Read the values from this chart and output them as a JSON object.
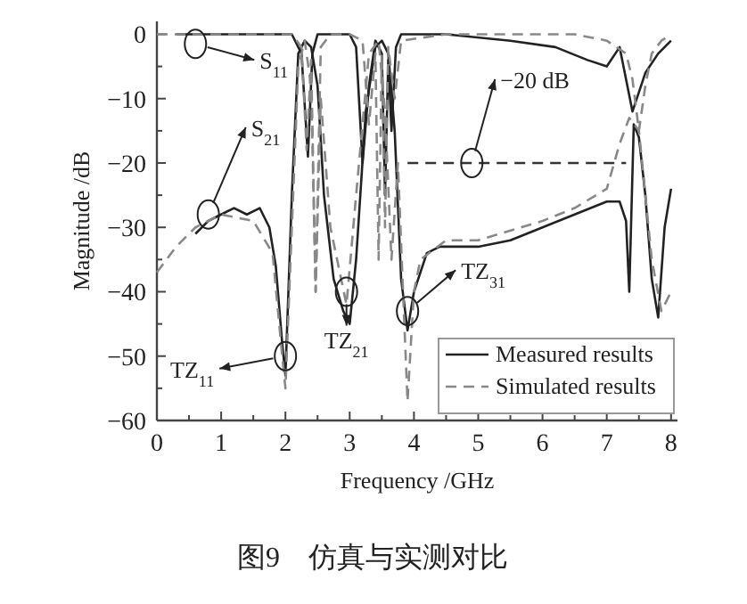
{
  "chart_data": {
    "type": "line",
    "xlabel": "Frequency /GHz",
    "ylabel": "Magnitude /dB",
    "xlim": [
      0,
      8.1
    ],
    "ylim": [
      -60,
      2
    ],
    "xticks": [
      0,
      {
        "value": 0.5,
        "label": null
      },
      1,
      {
        "value": 1.5,
        "label": null
      },
      2,
      {
        "value": 2.5,
        "label": null
      },
      3,
      {
        "value": 3.5,
        "label": null
      },
      4,
      {
        "value": 4.5,
        "label": null
      },
      5,
      {
        "value": 5.5,
        "label": null
      },
      6,
      {
        "value": 6.5,
        "label": null
      },
      7,
      {
        "value": 7.5,
        "label": null
      },
      8
    ],
    "yticks": [
      {
        "value": -60,
        "label": "−60"
      },
      {
        "value": -55,
        "label": null
      },
      {
        "value": -50,
        "label": "−50"
      },
      {
        "value": -45,
        "label": null
      },
      {
        "value": -40,
        "label": "−40"
      },
      {
        "value": -35,
        "label": null
      },
      {
        "value": -30,
        "label": "−30"
      },
      {
        "value": -25,
        "label": null
      },
      {
        "value": -20,
        "label": "−20"
      },
      {
        "value": -15,
        "label": null
      },
      {
        "value": -10,
        "label": "−10"
      },
      {
        "value": -5,
        "label": null
      },
      0
    ],
    "grid": false,
    "legend": "bottom right",
    "marker": "none",
    "series": [
      {
        "name": "Measured results",
        "color": "#222222",
        "line_style": "solid",
        "x": [
          0.3,
          1.0,
          2.1,
          2.25,
          2.35,
          2.42,
          2.5,
          2.6,
          2.8,
          3.0,
          3.1,
          3.2,
          3.3,
          3.4,
          3.5,
          3.55,
          3.6,
          3.65,
          3.72,
          3.8,
          4.5,
          5.5,
          6.2,
          6.7,
          7.0,
          7.2,
          7.3,
          7.4,
          7.6,
          7.8,
          8.0
        ],
        "values": [
          0,
          0,
          0,
          -3,
          -19,
          -3,
          0,
          0,
          0,
          0,
          -2,
          -20,
          -8,
          -1,
          -3,
          -25,
          -4,
          -15,
          -2,
          0,
          0,
          -1,
          -2,
          -4,
          -5,
          -2,
          -7,
          -12,
          -6,
          -3,
          -1
        ]
      },
      {
        "color": "#222222",
        "line_style": "solid",
        "x": [
          0.6,
          0.8,
          1.0,
          1.2,
          1.4,
          1.6,
          1.75,
          1.85,
          1.95,
          2.0,
          2.1,
          2.2,
          2.3,
          2.4,
          2.5,
          2.6,
          2.75,
          2.9,
          3.0,
          3.1,
          3.25,
          3.4,
          3.5,
          3.6,
          3.7,
          3.8,
          3.9,
          4.0,
          4.2,
          4.4,
          5.0,
          5.5,
          6.0,
          6.5,
          7.0,
          7.2,
          7.3,
          7.35,
          7.42,
          7.5,
          7.6,
          7.7,
          7.8,
          7.9,
          8.0
        ],
        "values": [
          -31,
          -29,
          -28,
          -27,
          -28,
          -27,
          -30,
          -36,
          -48,
          -53,
          -25,
          -3,
          -1,
          -2,
          -8,
          -25,
          -38,
          -43,
          -45,
          -35,
          -12,
          -2,
          -1,
          -3,
          -15,
          -38,
          -46,
          -40,
          -34,
          -33,
          -33,
          -32,
          -30,
          -28,
          -26,
          -26,
          -29,
          -40,
          -14,
          -16,
          -25,
          -38,
          -44,
          -30,
          -24
        ]
      },
      {
        "name": "Simulated results",
        "color": "#888888",
        "line_style": "dashed",
        "x": [
          0,
          1.0,
          2.1,
          2.25,
          2.33,
          2.4,
          2.47,
          2.55,
          2.7,
          3.0,
          3.2,
          3.3,
          3.4,
          3.45,
          3.5,
          3.55,
          3.6,
          3.7,
          3.8,
          4.5,
          5.5,
          6.5,
          7.0,
          7.3,
          7.4,
          7.5,
          7.6,
          7.7,
          7.85,
          8.0
        ],
        "values": [
          0,
          0,
          0,
          -2,
          -18,
          -4,
          -40,
          -2,
          0,
          0,
          -1,
          -14,
          -3,
          -35,
          -3,
          -30,
          -2,
          -10,
          -1,
          0,
          0,
          0,
          -1,
          -3,
          -7,
          -15,
          -8,
          -3,
          -1,
          0
        ]
      },
      {
        "color": "#888888",
        "line_style": "dashed",
        "x": [
          0,
          0.3,
          0.6,
          1.0,
          1.5,
          1.8,
          1.95,
          2.0,
          2.1,
          2.2,
          2.3,
          2.4,
          2.47,
          2.55,
          2.7,
          2.95,
          3.1,
          3.3,
          3.45,
          3.55,
          3.65,
          3.75,
          3.85,
          3.9,
          4.0,
          4.1,
          4.5,
          5.0,
          6.0,
          6.5,
          7.0,
          7.2,
          7.35,
          7.5,
          7.6,
          7.7,
          7.85,
          8.0
        ],
        "values": [
          -37,
          -33,
          -30,
          -28,
          -29,
          -34,
          -50,
          -55,
          -30,
          -5,
          -1,
          -8,
          -40,
          -10,
          -30,
          -42,
          -25,
          -3,
          -1,
          -12,
          -35,
          -20,
          -45,
          -57,
          -40,
          -35,
          -32,
          -32,
          -29,
          -27,
          -24,
          -17,
          -13,
          -15,
          -25,
          -35,
          -43,
          -40
        ]
      },
      {
        "color": "#333333",
        "line_style": "dashed",
        "x": [
          3.9,
          7.3
        ],
        "values": [
          -20,
          -20
        ]
      }
    ],
    "annotations": [
      {
        "text": "S$_{11}$",
        "x": 0.6,
        "y": -1.5
      },
      {
        "text": "S$_{21}$",
        "x": 0.8,
        "y": -28
      },
      {
        "text": "−20 dB",
        "x": 4.9,
        "y": -20
      },
      {
        "text": "TZ$_{11}$",
        "x": 2.0,
        "y": -50
      },
      {
        "text": "TZ$_{21}$",
        "x": 2.95,
        "y": -40
      },
      {
        "text": "TZ$_{31}$",
        "x": 3.9,
        "y": -43
      },
      "图9　仿真与实测对比"
    ]
  }
}
